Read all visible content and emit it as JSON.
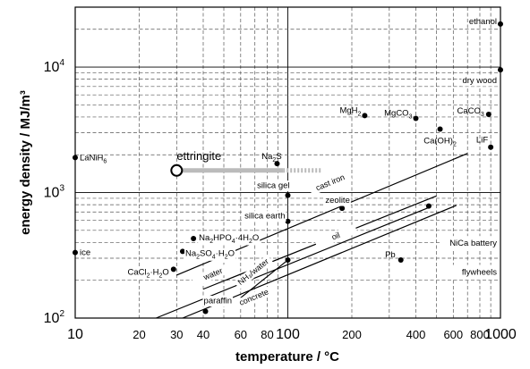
{
  "chart_data": {
    "type": "scatter",
    "x_scale": "log",
    "y_scale": "log",
    "xlim": [
      10,
      1000
    ],
    "ylim": [
      100,
      30000
    ],
    "grid": true,
    "xlabel": "temperature / °C",
    "ylabel": "energy density / MJ/m³",
    "x_ticks": [
      {
        "value": 10,
        "label": "10",
        "major": true
      },
      {
        "value": 20,
        "label": "20",
        "major": false
      },
      {
        "value": 30,
        "label": "30",
        "major": false
      },
      {
        "value": 40,
        "label": "40",
        "major": false
      },
      {
        "value": 60,
        "label": "60",
        "major": false
      },
      {
        "value": 80,
        "label": "80",
        "major": false
      },
      {
        "value": 100,
        "label": "100",
        "major": true
      },
      {
        "value": 200,
        "label": "200",
        "major": false
      },
      {
        "value": 400,
        "label": "400",
        "major": false
      },
      {
        "value": 600,
        "label": "600",
        "major": false
      },
      {
        "value": 800,
        "label": "800",
        "major": false
      },
      {
        "value": 1000,
        "label": "1000",
        "major": true
      }
    ],
    "y_ticks": [
      {
        "value": 100,
        "label": "10",
        "sup": "2"
      },
      {
        "value": 1000,
        "label": "10",
        "sup": "3"
      },
      {
        "value": 10000,
        "label": "10",
        "sup": "4"
      }
    ],
    "points": [
      {
        "name": "LaNiH",
        "sub": "6",
        "x": 10,
        "y": 1900,
        "anchor": "start",
        "dx": 5
      },
      {
        "name": "ice",
        "x": 10,
        "y": 333,
        "anchor": "start",
        "dx": 5
      },
      {
        "name": "ethanol",
        "x": 1000,
        "y": 22000,
        "anchor": "end",
        "dx": -4,
        "dy": -3
      },
      {
        "name": "dry wood",
        "x": 1000,
        "y": 9500,
        "anchor": "end",
        "dx": -4,
        "dy": 12,
        "bg": true
      },
      {
        "name": "MgH",
        "sub": "2",
        "x": 230,
        "y": 4100,
        "anchor": "end",
        "dx": -4,
        "dy": -6
      },
      {
        "name": "MgCO",
        "sub": "3",
        "x": 400,
        "y": 3900,
        "anchor": "end",
        "dx": -4,
        "dy": -6
      },
      {
        "name": "CaCO",
        "sub": "3",
        "x": 880,
        "y": 4200,
        "anchor": "end",
        "dx": -5,
        "dy": -4
      },
      {
        "name": "Ca(OH)",
        "sub": "2",
        "x": 520,
        "y": 3200,
        "anchor": "middle",
        "dx": 0,
        "dy": 13
      },
      {
        "name": "LiF",
        "x": 900,
        "y": 2300,
        "anchor": "end",
        "dx": -3,
        "dy": -8
      },
      {
        "name": "Na",
        "sub": "2",
        "tail": "S",
        "x": 89,
        "y": 1700,
        "anchor": "middle",
        "dx": -6,
        "dy": -8
      },
      {
        "name": "silica gel",
        "x": 100,
        "y": 950,
        "anchor": "end",
        "dx": 2,
        "dy": -11,
        "bg": true
      },
      {
        "name": "zeolite",
        "x": 180,
        "y": 750,
        "anchor": "middle",
        "dx": -5,
        "dy": -9,
        "bg": true
      },
      {
        "name": "silica earth",
        "x": 100,
        "y": 590,
        "anchor": "end",
        "dx": -3,
        "dy": -6,
        "bg": true
      },
      {
        "name": "Na",
        "sub": "2",
        "tail": "HPO",
        "sub2": "4",
        "tail2": "·4H",
        "sub3": "2",
        "tail3": "O",
        "x": 36,
        "y": 430,
        "anchor": "start",
        "dx": 6,
        "dy": -1,
        "bg": true
      },
      {
        "name": "Na",
        "sub": "2",
        "tail": "SO",
        "sub2": "4",
        "tail2": "·H",
        "sub3": "2",
        "tail3": "O",
        "x": 32,
        "y": 340,
        "anchor": "start",
        "dx": 3,
        "dy": 2,
        "bg": true
      },
      {
        "name": "CaCl",
        "sub": "2",
        "tail": "·H",
        "sub2": "2",
        "tail2": "O",
        "x": 29,
        "y": 245,
        "anchor": "end",
        "dx": -5,
        "dy": 3,
        "bg": true
      },
      {
        "name": "Pb",
        "x": 340,
        "y": 290,
        "anchor": "end",
        "dx": -6,
        "dy": -6
      },
      {
        "name": "paraffin",
        "x": 41,
        "y": 113,
        "anchor": "start",
        "dx": -2,
        "dy": -12,
        "bg": true
      },
      {
        "name": "",
        "x": 100,
        "y": 290
      },
      {
        "name": "",
        "x": 460,
        "y": 780
      }
    ],
    "line_series": [
      {
        "name": "cast iron",
        "x": [
          30,
          700
        ],
        "y": [
          220,
          2050
        ],
        "label_x": 160,
        "label_y": 1150
      },
      {
        "name": "oil",
        "x": [
          40,
          500
        ],
        "y": [
          170,
          940
        ],
        "label_x": 170,
        "label_y": 430
      },
      {
        "name": "water",
        "x": [
          24,
          460
        ],
        "y": [
          100,
          760
        ],
        "label_x": 45,
        "label_y": 215
      },
      {
        "name": "NH₃/water",
        "x": [
          60,
          100
        ],
        "y": [
          145,
          290
        ],
        "label_x": 70,
        "label_y": 225
      },
      {
        "name": "concrete",
        "x": [
          32,
          620
        ],
        "y": [
          100,
          790
        ],
        "label_x": 70,
        "label_y": 140
      }
    ],
    "bands": [
      {
        "name": "NiCa battery",
        "y_range": [
          300,
          520
        ]
      },
      {
        "name": "flywheels",
        "y_range": [
          180,
          300
        ]
      }
    ],
    "highlight": {
      "name": "ettringite",
      "x_start": 30,
      "x_solid_end": 95,
      "x_dashed_end": 145,
      "y": 1500
    }
  }
}
